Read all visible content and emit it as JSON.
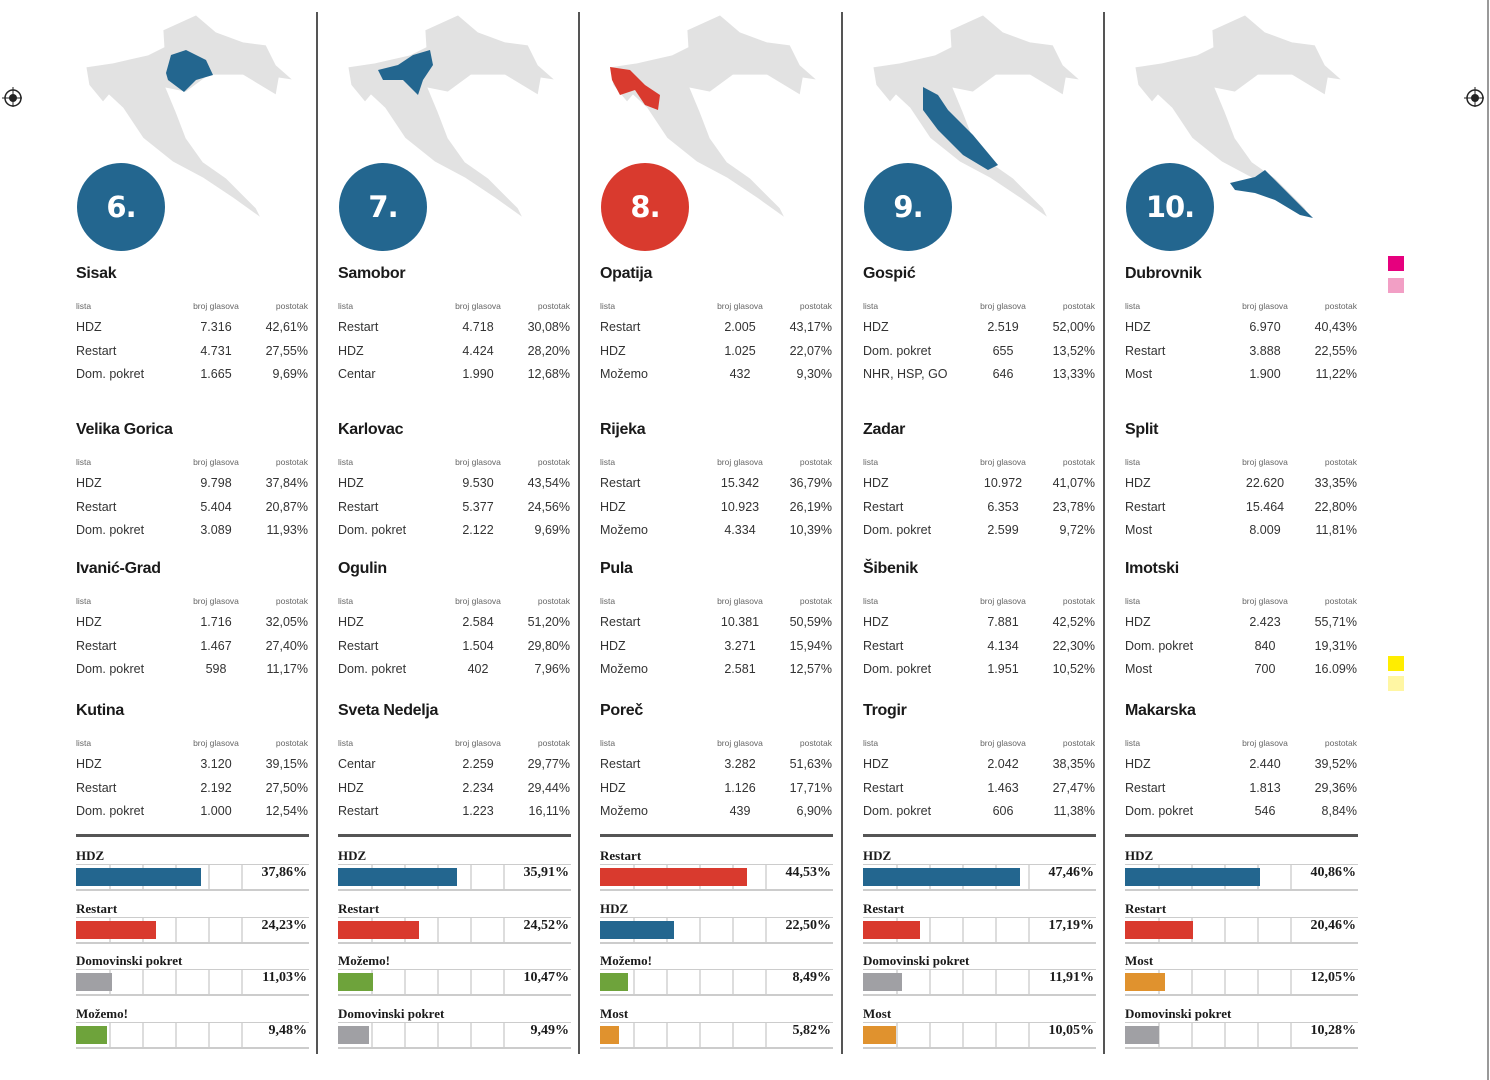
{
  "table_headers": {
    "list": "lista",
    "votes": "broj glasova",
    "percent": "postotak"
  },
  "colors": {
    "HDZ": "#23668f",
    "Restart": "#d93a2e",
    "Domovinski pokret": "#a0a0a4",
    "Možemo!": "#6ea33b",
    "Most": "#e0922e",
    "map_base": "#e2e2e2",
    "swatches": [
      "#e6007e",
      "#f29fc5",
      "#ffed00",
      "#fff6a3"
    ]
  },
  "columns": [
    {
      "number": "6.",
      "badge_color": "#23668f",
      "highlight_color": "#23668f",
      "cities": [
        {
          "name": "Sisak",
          "rows": [
            [
              "HDZ",
              "7.316",
              "42,61%"
            ],
            [
              "Restart",
              "4.731",
              "27,55%"
            ],
            [
              "Dom. pokret",
              "1.665",
              "9,69%"
            ]
          ]
        },
        {
          "name": "Velika Gorica",
          "rows": [
            [
              "HDZ",
              "9.798",
              "37,84%"
            ],
            [
              "Restart",
              "5.404",
              "20,87%"
            ],
            [
              "Dom. pokret",
              "3.089",
              "11,93%"
            ]
          ]
        },
        {
          "name": "Ivanić-Grad",
          "rows": [
            [
              "HDZ",
              "1.716",
              "32,05%"
            ],
            [
              "Restart",
              "1.467",
              "27,40%"
            ],
            [
              "Dom. pokret",
              "598",
              "11,17%"
            ]
          ]
        },
        {
          "name": "Kutina",
          "rows": [
            [
              "HDZ",
              "3.120",
              "39,15%"
            ],
            [
              "Restart",
              "2.192",
              "27,50%"
            ],
            [
              "Dom. pokret",
              "1.000",
              "12,54%"
            ]
          ]
        }
      ],
      "bars": [
        {
          "party": "HDZ",
          "label": "HDZ",
          "value": 37.86,
          "text": "37,86%"
        },
        {
          "party": "Restart",
          "label": "Restart",
          "value": 24.23,
          "text": "24,23%"
        },
        {
          "party": "Domovinski pokret",
          "label": "Domovinski pokret",
          "value": 11.03,
          "text": "11,03%"
        },
        {
          "party": "Možemo!",
          "label": "Možemo!",
          "value": 9.48,
          "text": "9,48%"
        }
      ]
    },
    {
      "number": "7.",
      "badge_color": "#23668f",
      "highlight_color": "#23668f",
      "cities": [
        {
          "name": "Samobor",
          "rows": [
            [
              "Restart",
              "4.718",
              "30,08%"
            ],
            [
              "HDZ",
              "4.424",
              "28,20%"
            ],
            [
              "Centar",
              "1.990",
              "12,68%"
            ]
          ]
        },
        {
          "name": "Karlovac",
          "rows": [
            [
              "HDZ",
              "9.530",
              "43,54%"
            ],
            [
              "Restart",
              "5.377",
              "24,56%"
            ],
            [
              "Dom. pokret",
              "2.122",
              "9,69%"
            ]
          ]
        },
        {
          "name": "Ogulin",
          "rows": [
            [
              "HDZ",
              "2.584",
              "51,20%"
            ],
            [
              "Restart",
              "1.504",
              "29,80%"
            ],
            [
              "Dom. pokret",
              "402",
              "7,96%"
            ]
          ]
        },
        {
          "name": "Sveta Nedelja",
          "rows": [
            [
              "Centar",
              "2.259",
              "29,77%"
            ],
            [
              "HDZ",
              "2.234",
              "29,44%"
            ],
            [
              "Restart",
              "1.223",
              "16,11%"
            ]
          ]
        }
      ],
      "bars": [
        {
          "party": "HDZ",
          "label": "HDZ",
          "value": 35.91,
          "text": "35,91%"
        },
        {
          "party": "Restart",
          "label": "Restart",
          "value": 24.52,
          "text": "24,52%"
        },
        {
          "party": "Možemo!",
          "label": "Možemo!",
          "value": 10.47,
          "text": "10,47%"
        },
        {
          "party": "Domovinski pokret",
          "label": "Domovinski pokret",
          "value": 9.49,
          "text": "9,49%"
        }
      ]
    },
    {
      "number": "8.",
      "badge_color": "#d93a2e",
      "highlight_color": "#d93a2e",
      "cities": [
        {
          "name": "Opatija",
          "rows": [
            [
              "Restart",
              "2.005",
              "43,17%"
            ],
            [
              "HDZ",
              "1.025",
              "22,07%"
            ],
            [
              "Možemo",
              "432",
              "9,30%"
            ]
          ]
        },
        {
          "name": "Rijeka",
          "rows": [
            [
              "Restart",
              "15.342",
              "36,79%"
            ],
            [
              "HDZ",
              "10.923",
              "26,19%"
            ],
            [
              "Možemo",
              "4.334",
              "10,39%"
            ]
          ]
        },
        {
          "name": "Pula",
          "rows": [
            [
              "Restart",
              "10.381",
              "50,59%"
            ],
            [
              "HDZ",
              "3.271",
              "15,94%"
            ],
            [
              "Možemo",
              "2.581",
              "12,57%"
            ]
          ]
        },
        {
          "name": "Poreč",
          "rows": [
            [
              "Restart",
              "3.282",
              "51,63%"
            ],
            [
              "HDZ",
              "1.126",
              "17,71%"
            ],
            [
              "Možemo",
              "439",
              "6,90%"
            ]
          ]
        }
      ],
      "bars": [
        {
          "party": "Restart",
          "label": "Restart",
          "value": 44.53,
          "text": "44,53%"
        },
        {
          "party": "HDZ",
          "label": "HDZ",
          "value": 22.5,
          "text": "22,50%"
        },
        {
          "party": "Možemo!",
          "label": "Možemo!",
          "value": 8.49,
          "text": "8,49%"
        },
        {
          "party": "Most",
          "label": "Most",
          "value": 5.82,
          "text": "5,82%"
        }
      ]
    },
    {
      "number": "9.",
      "badge_color": "#23668f",
      "highlight_color": "#23668f",
      "cities": [
        {
          "name": "Gospić",
          "rows": [
            [
              "HDZ",
              "2.519",
              "52,00%"
            ],
            [
              "Dom. pokret",
              "655",
              "13,52%"
            ],
            [
              "NHR, HSP, GO",
              "646",
              "13,33%"
            ]
          ]
        },
        {
          "name": "Zadar",
          "rows": [
            [
              "HDZ",
              "10.972",
              "41,07%"
            ],
            [
              "Restart",
              "6.353",
              "23,78%"
            ],
            [
              "Dom. pokret",
              "2.599",
              "9,72%"
            ]
          ]
        },
        {
          "name": "Šibenik",
          "rows": [
            [
              "HDZ",
              "7.881",
              "42,52%"
            ],
            [
              "Restart",
              "4.134",
              "22,30%"
            ],
            [
              "Dom. pokret",
              "1.951",
              "10,52%"
            ]
          ]
        },
        {
          "name": "Trogir",
          "rows": [
            [
              "HDZ",
              "2.042",
              "38,35%"
            ],
            [
              "Restart",
              "1.463",
              "27,47%"
            ],
            [
              "Dom. pokret",
              "606",
              "11,38%"
            ]
          ]
        }
      ],
      "bars": [
        {
          "party": "HDZ",
          "label": "HDZ",
          "value": 47.46,
          "text": "47,46%"
        },
        {
          "party": "Restart",
          "label": "Restart",
          "value": 17.19,
          "text": "17,19%"
        },
        {
          "party": "Domovinski pokret",
          "label": "Domovinski pokret",
          "value": 11.91,
          "text": "11,91%"
        },
        {
          "party": "Most",
          "label": "Most",
          "value": 10.05,
          "text": "10,05%"
        }
      ]
    },
    {
      "number": "10.",
      "badge_color": "#23668f",
      "highlight_color": "#23668f",
      "cities": [
        {
          "name": "Dubrovnik",
          "rows": [
            [
              "HDZ",
              "6.970",
              "40,43%"
            ],
            [
              "Restart",
              "3.888",
              "22,55%"
            ],
            [
              "Most",
              "1.900",
              "11,22%"
            ]
          ]
        },
        {
          "name": "Split",
          "rows": [
            [
              "HDZ",
              "22.620",
              "33,35%"
            ],
            [
              "Restart",
              "15.464",
              "22,80%"
            ],
            [
              "Most",
              "8.009",
              "11,81%"
            ]
          ]
        },
        {
          "name": "Imotski",
          "rows": [
            [
              "HDZ",
              "2.423",
              "55,71%"
            ],
            [
              "Dom. pokret",
              "840",
              "19,31%"
            ],
            [
              "Most",
              "700",
              "16.09%"
            ]
          ]
        },
        {
          "name": "Makarska",
          "rows": [
            [
              "HDZ",
              "2.440",
              "39,52%"
            ],
            [
              "Restart",
              "1.813",
              "29,36%"
            ],
            [
              "Dom. pokret",
              "546",
              "8,84%"
            ]
          ]
        }
      ],
      "bars": [
        {
          "party": "HDZ",
          "label": "HDZ",
          "value": 40.86,
          "text": "40,86%"
        },
        {
          "party": "Restart",
          "label": "Restart",
          "value": 20.46,
          "text": "20,46%"
        },
        {
          "party": "Most",
          "label": "Most",
          "value": 12.05,
          "text": "12,05%"
        },
        {
          "party": "Domovinski pokret",
          "label": "Domovinski pokret",
          "value": 10.28,
          "text": "10,28%"
        }
      ]
    }
  ]
}
